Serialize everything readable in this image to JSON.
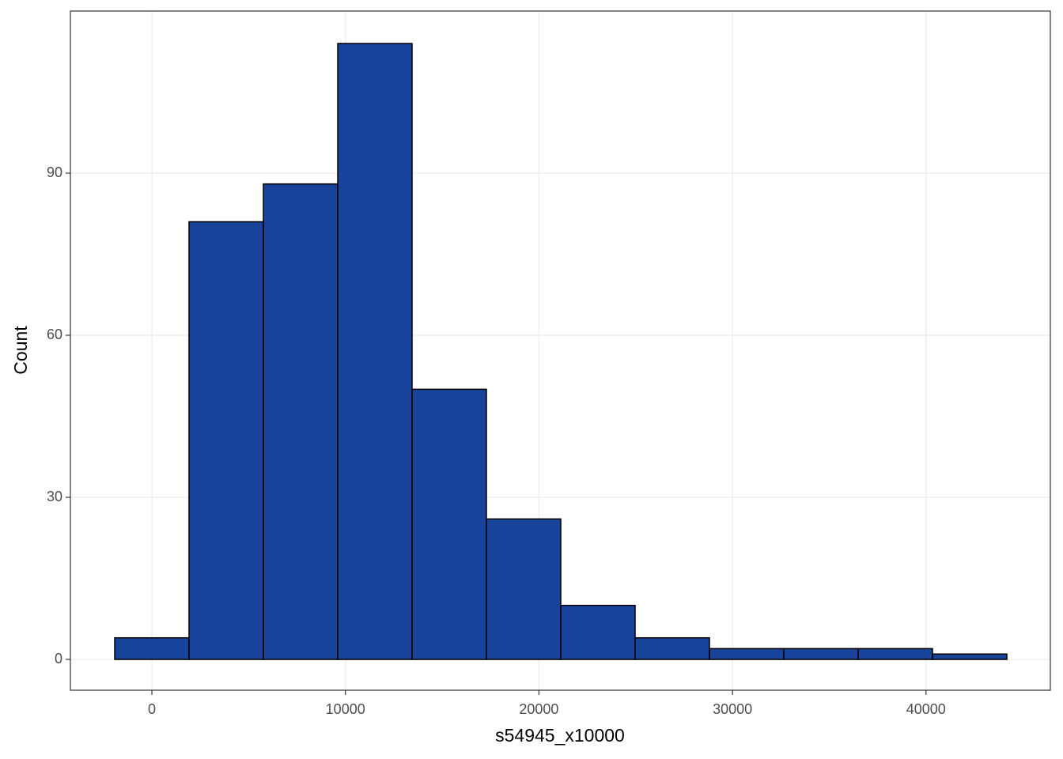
{
  "chart_data": {
    "type": "histogram",
    "x_label": "s54945_x10000",
    "y_label": "Count",
    "bins": [
      -1921,
      1920,
      5762,
      9603,
      13445,
      17286,
      21128,
      24969,
      28811,
      32652,
      36494,
      40335,
      44177
    ],
    "values": [
      4,
      81,
      88,
      114,
      50,
      26,
      10,
      4,
      2,
      2,
      2,
      1
    ],
    "color": "#17439b",
    "edge_color": "#000000",
    "xlim": [
      -4210,
      46424
    ],
    "xticks": [
      0,
      10000,
      20000,
      30000,
      40000
    ],
    "ylim": [
      -5.7,
      120
    ],
    "yticks": [
      0,
      30,
      60,
      90
    ],
    "grid": true
  }
}
